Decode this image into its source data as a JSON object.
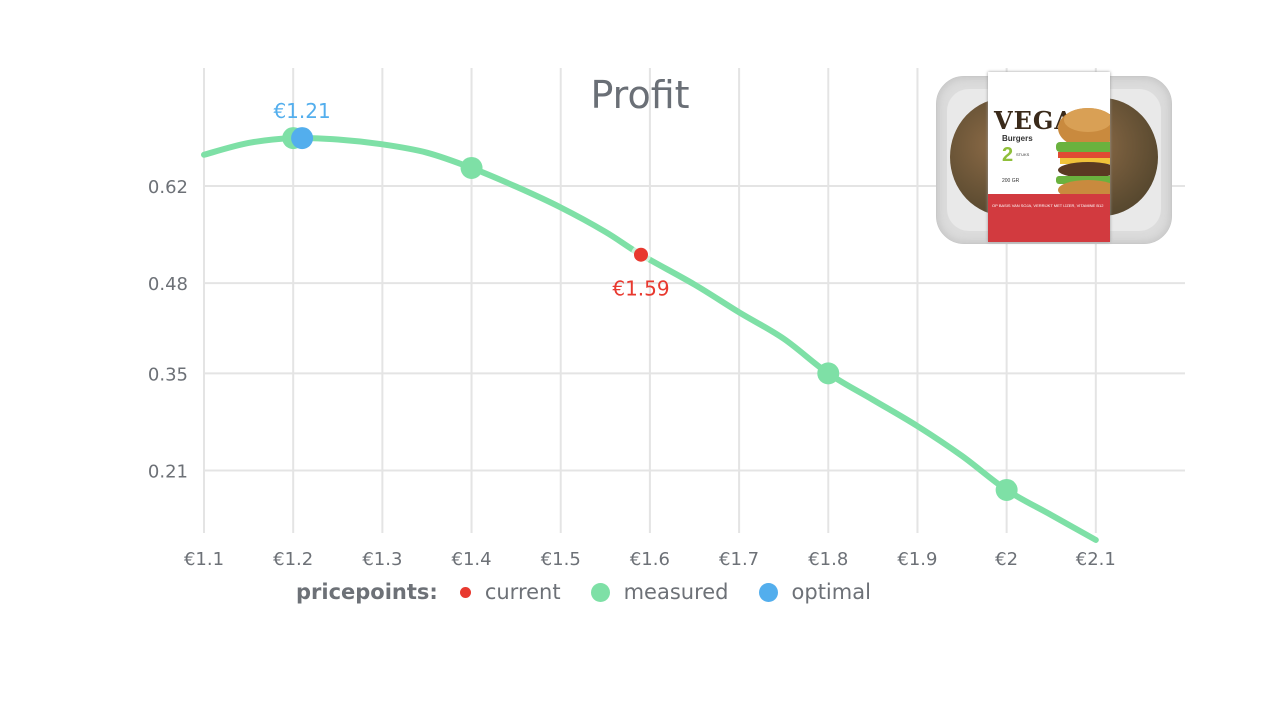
{
  "chart_data": {
    "type": "line",
    "title": "Profit",
    "x": [
      1.2,
      1.21,
      1.4,
      1.59,
      1.8,
      2.0
    ],
    "xlabel": "",
    "ylabel": "",
    "xlim": [
      1.1,
      2.2
    ],
    "ylim": [
      0.12,
      0.79
    ],
    "x_tick_values": [
      1.1,
      1.2,
      1.3,
      1.4,
      1.5,
      1.6,
      1.7,
      1.8,
      1.9,
      2.0,
      2.1
    ],
    "x_tick_labels": [
      "€1.1",
      "€1.2",
      "€1.3",
      "€1.4",
      "€1.5",
      "€1.6",
      "€1.7",
      "€1.8",
      "€1.9",
      "€2",
      "€2.1"
    ],
    "y_tick_values": [
      0.21,
      0.35,
      0.48,
      0.62
    ],
    "y_tick_labels": [
      "0.21",
      "0.35",
      "0.48",
      "0.62"
    ],
    "grid": true,
    "curve": {
      "x": [
        1.1,
        1.15,
        1.2,
        1.25,
        1.3,
        1.35,
        1.4,
        1.45,
        1.5,
        1.55,
        1.59,
        1.65,
        1.7,
        1.75,
        1.8,
        1.85,
        1.9,
        1.95,
        2.0,
        2.05,
        2.1
      ],
      "y": [
        0.665,
        0.682,
        0.689,
        0.687,
        0.68,
        0.668,
        0.646,
        0.619,
        0.589,
        0.554,
        0.521,
        0.478,
        0.438,
        0.4,
        0.35,
        0.312,
        0.274,
        0.231,
        0.182,
        0.146,
        0.11
      ],
      "color": "#7ee0a6"
    },
    "points": {
      "measured": [
        {
          "x": 1.2,
          "y": 0.689
        },
        {
          "x": 1.4,
          "y": 0.646
        },
        {
          "x": 1.8,
          "y": 0.35
        },
        {
          "x": 2.0,
          "y": 0.182
        }
      ],
      "current": {
        "x": 1.59,
        "y": 0.521,
        "label": "€1.59"
      },
      "optimal": {
        "x": 1.21,
        "y": 0.689,
        "label": "€1.21"
      }
    },
    "colors": {
      "current": "#e8392f",
      "measured": "#7ee0a6",
      "optimal": "#53aeed",
      "grid": "#e4e4e4"
    },
    "legend": {
      "title": "pricepoints:",
      "placement": "bottom",
      "items": [
        {
          "name": "current",
          "color": "#e8392f",
          "size": "small"
        },
        {
          "name": "measured",
          "color": "#7ee0a6",
          "size": "big"
        },
        {
          "name": "optimal",
          "color": "#53aeed",
          "size": "big"
        }
      ]
    }
  },
  "product": {
    "image_name": "vegan-burgers-package-image",
    "brand_text": "VEGAN",
    "sub_text": "Burgers",
    "count_text": "2",
    "stuks_text": "STUKS",
    "weight_text": "200 GR",
    "fine_text": "OP BASIS VAN SOJA, VERRIJKT MET IJZER, VITAMINE B12"
  }
}
